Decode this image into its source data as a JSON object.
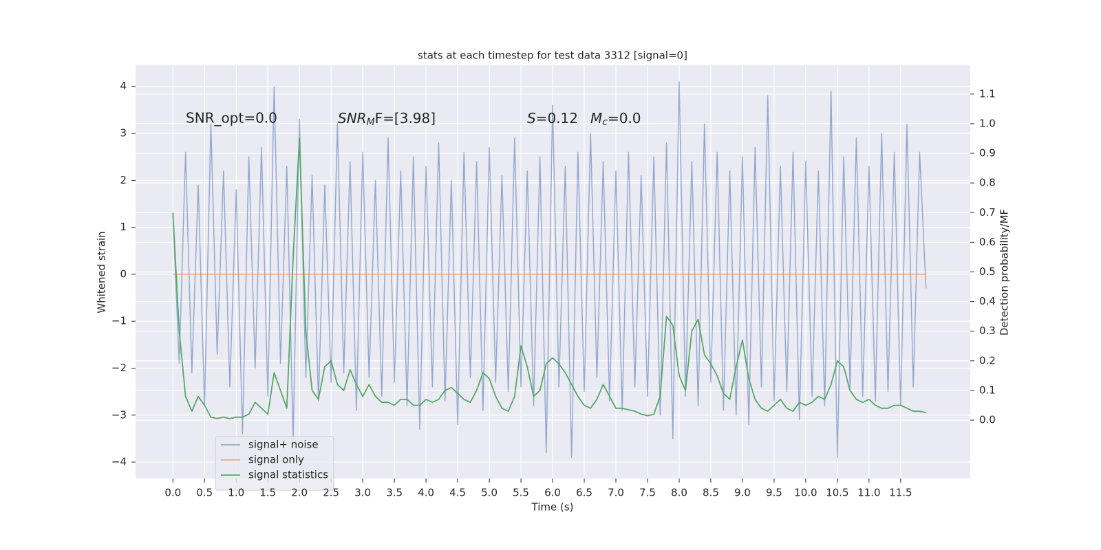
{
  "chart_data": {
    "type": "line",
    "title": "stats at each timestep for test data 3312 [signal=0]",
    "x_label": "Time (s)",
    "y_label": "Whitened strain",
    "y2_label": "Detection probability/MF",
    "annotations": [
      "SNR_opt=0.0",
      [
        "SNR",
        "M",
        "F=[3.98]"
      ],
      [
        "S",
        "=0.12"
      ],
      [
        "M",
        "c",
        "=0.0"
      ]
    ],
    "xlim": [
      -0.59,
      12.6
    ],
    "ylim": [
      -4.35,
      4.45
    ],
    "y2lim": [
      -0.197,
      1.197
    ],
    "grid": true,
    "legend": "lower left",
    "xticks": [
      {
        "value": 0,
        "label": "0.0"
      },
      {
        "value": 0.5,
        "label": "0.5"
      },
      {
        "value": 1,
        "label": "1.0"
      },
      {
        "value": 1.5,
        "label": "1.5"
      },
      {
        "value": 2,
        "label": "2.0"
      },
      {
        "value": 2.5,
        "label": "2.5"
      },
      {
        "value": 3,
        "label": "3.0"
      },
      {
        "value": 3.5,
        "label": "3.5"
      },
      {
        "value": 4,
        "label": "4.0"
      },
      {
        "value": 4.5,
        "label": "4.5"
      },
      {
        "value": 5,
        "label": "5.0"
      },
      {
        "value": 5.5,
        "label": "5.5"
      },
      {
        "value": 6,
        "label": "6.0"
      },
      {
        "value": 6.5,
        "label": "6.5"
      },
      {
        "value": 7,
        "label": "7.0"
      },
      {
        "value": 7.5,
        "label": "7.5"
      },
      {
        "value": 8,
        "label": "8.0"
      },
      {
        "value": 8.5,
        "label": "8.5"
      },
      {
        "value": 9,
        "label": "9.0"
      },
      {
        "value": 9.5,
        "label": "9.5"
      },
      {
        "value": 10,
        "label": "10.0"
      },
      {
        "value": 10.5,
        "label": "10.5"
      },
      {
        "value": 11,
        "label": "11.0"
      },
      {
        "value": 11.5,
        "label": "11.5"
      }
    ],
    "yticks": [
      {
        "value": -4,
        "label": "−4"
      },
      {
        "value": -3,
        "label": "−3"
      },
      {
        "value": -2,
        "label": "−2"
      },
      {
        "value": -1,
        "label": "−1"
      },
      0,
      1,
      2,
      3,
      4
    ],
    "y2ticks": [
      {
        "value": 0,
        "label": "0.0"
      },
      {
        "value": 0.1,
        "label": "0.1"
      },
      {
        "value": 0.2,
        "label": "0.2"
      },
      {
        "value": 0.3,
        "label": "0.3"
      },
      {
        "value": 0.4,
        "label": "0.4"
      },
      {
        "value": 0.5,
        "label": "0.5"
      },
      {
        "value": 0.6,
        "label": "0.6"
      },
      {
        "value": 0.7,
        "label": "0.7"
      },
      {
        "value": 0.8,
        "label": "0.8"
      },
      {
        "value": 0.9,
        "label": "0.9"
      },
      {
        "value": 1,
        "label": "1.0"
      },
      {
        "value": 1.1,
        "label": "1.1"
      }
    ],
    "x": [
      0,
      0.1,
      0.2,
      0.3,
      0.4,
      0.5,
      0.6,
      0.7,
      0.8,
      0.9,
      1,
      1.1,
      1.2,
      1.3,
      1.4,
      1.5,
      1.6,
      1.7,
      1.8,
      1.9,
      2,
      2.1,
      2.2,
      2.3,
      2.4,
      2.5,
      2.6,
      2.7,
      2.8,
      2.9,
      3,
      3.1,
      3.2,
      3.3,
      3.4,
      3.5,
      3.6,
      3.7,
      3.8,
      3.9,
      4,
      4.1,
      4.2,
      4.3,
      4.4,
      4.5,
      4.6,
      4.7,
      4.8,
      4.9,
      5,
      5.1,
      5.2,
      5.3,
      5.4,
      5.5,
      5.6,
      5.7,
      5.8,
      5.9,
      6,
      6.1,
      6.2,
      6.3,
      6.4,
      6.5,
      6.6,
      6.7,
      6.8,
      6.9,
      7,
      7.1,
      7.2,
      7.3,
      7.4,
      7.5,
      7.6,
      7.7,
      7.8,
      7.9,
      8,
      8.1,
      8.2,
      8.3,
      8.4,
      8.5,
      8.6,
      8.7,
      8.8,
      8.9,
      9,
      9.1,
      9.2,
      9.3,
      9.4,
      9.5,
      9.6,
      9.7,
      9.8,
      9.9,
      10,
      10.1,
      10.2,
      10.3,
      10.4,
      10.5,
      10.6,
      10.7,
      10.8,
      10.9,
      11,
      11.1,
      11.2,
      11.3,
      11.4,
      11.5,
      11.6,
      11.7,
      11.8,
      11.9
    ],
    "series": [
      {
        "name": "signal+ noise",
        "color": "#4c72b0",
        "values": [
          1.3,
          -1.9,
          2.6,
          -2.1,
          1.9,
          -2.8,
          3.2,
          -1.7,
          2.2,
          -2.4,
          1.8,
          -3.4,
          2.5,
          -2.0,
          2.7,
          -2.6,
          4.0,
          -1.9,
          2.3,
          -3.5,
          3.3,
          -2.2,
          2.1,
          -2.7,
          1.9,
          -2.3,
          3.2,
          -2.1,
          2.4,
          -2.9,
          2.6,
          -2.2,
          2.0,
          -2.6,
          2.9,
          -2.3,
          2.2,
          -2.8,
          2.5,
          -3.3,
          2.3,
          -2.4,
          2.8,
          -2.7,
          2.0,
          -3.2,
          2.6,
          -2.2,
          2.4,
          -2.9,
          2.7,
          -2.3,
          2.1,
          -2.5,
          2.9,
          -2.4,
          2.2,
          -2.8,
          2.5,
          -3.8,
          3.6,
          -2.4,
          2.3,
          -3.9,
          2.6,
          -2.5,
          3.0,
          -2.2,
          2.4,
          -2.7,
          2.2,
          -2.9,
          2.6,
          -2.4,
          2.1,
          -2.6,
          2.5,
          -3.0,
          2.8,
          -3.5,
          4.1,
          -2.6,
          2.4,
          -2.8,
          3.2,
          -2.3,
          2.6,
          -2.9,
          2.2,
          -3.0,
          2.5,
          -3.2,
          2.7,
          -2.4,
          3.8,
          -2.7,
          2.3,
          -2.5,
          2.6,
          -3.1,
          2.4,
          -2.6,
          2.2,
          -2.8,
          3.9,
          -3.9,
          2.5,
          -2.4,
          2.9,
          -2.6,
          2.3,
          -2.7,
          3.0,
          -2.5,
          2.6,
          -2.8,
          3.2,
          -2.4,
          2.6,
          -0.3
        ]
      },
      {
        "name": "signal only",
        "color": "#dd8452",
        "values": [
          0,
          0,
          0,
          0,
          0,
          0,
          0,
          0,
          0,
          0,
          0,
          0,
          0,
          0,
          0,
          0,
          0,
          0,
          0,
          0,
          0,
          0,
          0,
          0,
          0,
          0,
          0,
          0,
          0,
          0,
          0,
          0,
          0,
          0,
          0,
          0,
          0,
          0,
          0,
          0,
          0,
          0,
          0,
          0,
          0,
          0,
          0,
          0,
          0,
          0,
          0,
          0,
          0,
          0,
          0,
          0,
          0,
          0,
          0,
          0,
          0,
          0,
          0,
          0,
          0,
          0,
          0,
          0,
          0,
          0,
          0,
          0,
          0,
          0,
          0,
          0,
          0,
          0,
          0,
          0,
          0,
          0,
          0,
          0,
          0,
          0,
          0,
          0,
          0,
          0,
          0,
          0,
          0,
          0,
          0,
          0,
          0,
          0,
          0,
          0,
          0,
          0,
          0,
          0,
          0,
          0,
          0,
          0,
          0,
          0,
          0,
          0,
          0,
          0,
          0,
          0,
          0,
          0,
          0,
          0
        ]
      },
      {
        "name": "signal statistics",
        "color": "#55a868",
        "axis": "y2",
        "values": [
          0.7,
          0.3,
          0.08,
          0.03,
          0.08,
          0.05,
          0.01,
          0.005,
          0.01,
          0.005,
          0.01,
          0.01,
          0.02,
          0.06,
          0.04,
          0.02,
          0.16,
          0.1,
          0.04,
          0.55,
          0.95,
          0.3,
          0.1,
          0.07,
          0.18,
          0.2,
          0.12,
          0.1,
          0.17,
          0.12,
          0.08,
          0.12,
          0.08,
          0.06,
          0.06,
          0.05,
          0.07,
          0.07,
          0.05,
          0.05,
          0.07,
          0.06,
          0.07,
          0.1,
          0.11,
          0.09,
          0.07,
          0.06,
          0.1,
          0.16,
          0.14,
          0.08,
          0.04,
          0.03,
          0.08,
          0.25,
          0.18,
          0.08,
          0.1,
          0.19,
          0.21,
          0.19,
          0.16,
          0.12,
          0.08,
          0.05,
          0.04,
          0.07,
          0.12,
          0.08,
          0.04,
          0.04,
          0.035,
          0.03,
          0.02,
          0.015,
          0.02,
          0.08,
          0.35,
          0.32,
          0.15,
          0.1,
          0.3,
          0.34,
          0.22,
          0.19,
          0.15,
          0.09,
          0.07,
          0.18,
          0.27,
          0.14,
          0.07,
          0.04,
          0.03,
          0.05,
          0.07,
          0.04,
          0.03,
          0.06,
          0.05,
          0.06,
          0.08,
          0.07,
          0.12,
          0.2,
          0.18,
          0.1,
          0.07,
          0.06,
          0.07,
          0.05,
          0.04,
          0.04,
          0.05,
          0.05,
          0.04,
          0.03,
          0.03,
          0.025
        ]
      }
    ]
  }
}
